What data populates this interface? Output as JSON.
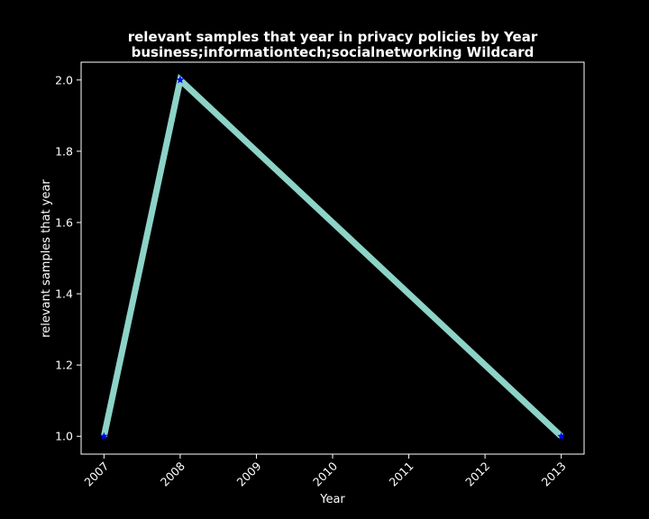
{
  "chart_data": {
    "type": "line",
    "title_line1": "relevant samples that year in privacy policies by Year",
    "title_line2": "business;informationtech;socialnetworking Wildcard",
    "xlabel": "Year",
    "ylabel": "relevant samples that year",
    "x": [
      2007,
      2008,
      2013
    ],
    "y": [
      1.0,
      2.0,
      1.0
    ],
    "xlim": [
      2006.7,
      2013.3
    ],
    "ylim": [
      0.95,
      2.05
    ],
    "xticks": [
      "2007",
      "2008",
      "2009",
      "2010",
      "2011",
      "2012",
      "2013"
    ],
    "yticks": [
      "1.0",
      "1.2",
      "1.4",
      "1.6",
      "1.8",
      "2.0"
    ],
    "grid": false,
    "line_color": "#8dd3c7",
    "marker_color": "#0000ff",
    "background": "#000000",
    "axis_color": "#ffffff"
  }
}
